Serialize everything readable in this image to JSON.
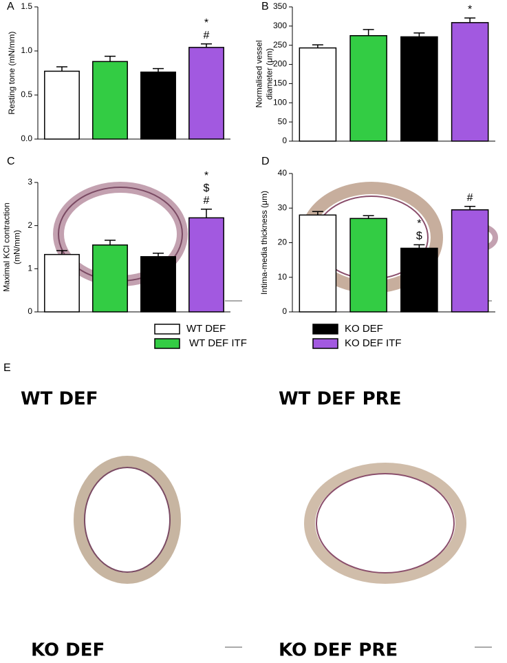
{
  "groups": {
    "categories": [
      "WT DEF",
      "WT DEF ITF",
      "KO DEF",
      "KO DEF ITF"
    ],
    "colors": [
      "#ffffff",
      "#33cc44",
      "#000000",
      "#a259e0"
    ]
  },
  "chart_data": [
    {
      "type": "bar",
      "panel": "A",
      "ylabel": [
        "Resting tone (mN/mm)"
      ],
      "values": [
        0.77,
        0.88,
        0.76,
        1.04
      ],
      "errors": [
        0.05,
        0.06,
        0.04,
        0.04
      ],
      "ylim": [
        0,
        1.5
      ],
      "yticks": [
        {
          "value": 0,
          "label": "0.0"
        },
        {
          "value": 0.5,
          "label": "0.5"
        },
        {
          "value": 1,
          "label": "1.0"
        },
        {
          "value": 1.5,
          "label": "1.5"
        }
      ],
      "annotations": [
        null,
        null,
        null,
        [
          "*",
          "#"
        ]
      ]
    },
    {
      "type": "bar",
      "panel": "B",
      "ylabel": [
        "Normalised vessel",
        "diameter (μm)"
      ],
      "values": [
        243,
        275,
        272,
        309
      ],
      "errors": [
        8,
        16,
        10,
        12
      ],
      "ylim": [
        0,
        350
      ],
      "yticks": [
        0,
        50,
        100,
        150,
        200,
        250,
        300,
        350
      ],
      "annotations": [
        null,
        null,
        null,
        [
          "*"
        ]
      ]
    },
    {
      "type": "bar",
      "panel": "C",
      "ylabel": [
        "Maximal KCl contraction",
        "(mN/mm)"
      ],
      "values": [
        1.33,
        1.55,
        1.28,
        2.18
      ],
      "errors": [
        0.09,
        0.11,
        0.08,
        0.2
      ],
      "ylim": [
        0,
        3
      ],
      "yticks": [
        0,
        1,
        2,
        3
      ],
      "annotations": [
        null,
        null,
        null,
        [
          "*",
          "$",
          "#"
        ]
      ]
    },
    {
      "type": "bar",
      "panel": "D",
      "ylabel": [
        "Intima-media thickness (μm)"
      ],
      "values": [
        28,
        27,
        18.4,
        29.5
      ],
      "errors": [
        1,
        0.8,
        1,
        1
      ],
      "ylim": [
        0,
        40
      ],
      "yticks": [
        0,
        10,
        20,
        30,
        40
      ],
      "annotations": [
        null,
        null,
        [
          "*",
          "$"
        ],
        [
          "#"
        ]
      ]
    }
  ],
  "panel_e": {
    "label": "E",
    "images": [
      "WT DEF",
      "WT DEF PRE",
      "KO DEF",
      "KO DEF PRE"
    ]
  }
}
